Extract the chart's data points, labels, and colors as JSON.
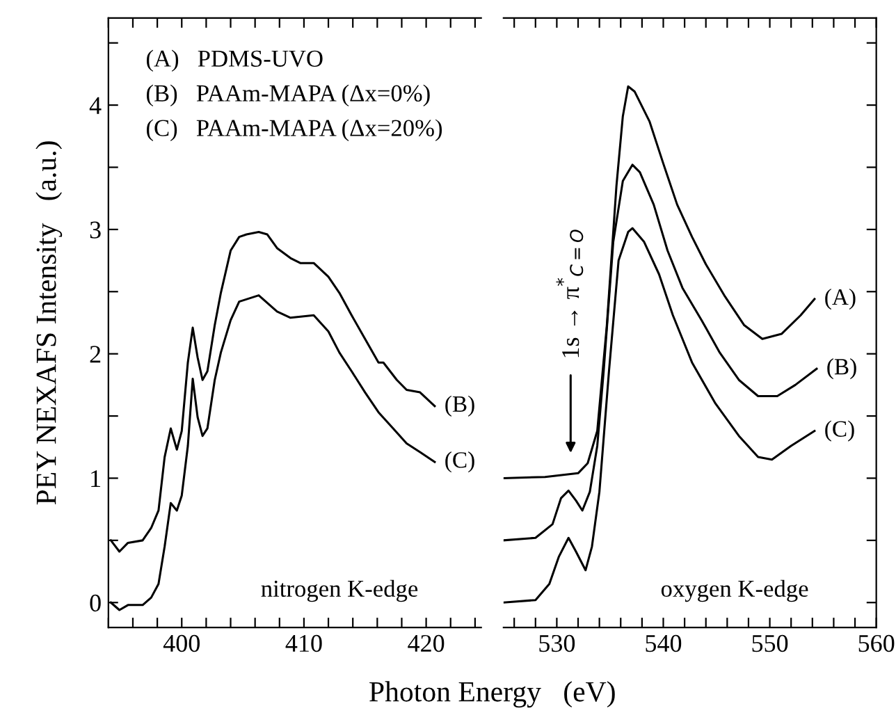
{
  "chart_data": [
    {
      "type": "line",
      "xlabel": "Photon Energy   (eV)",
      "ylabel": "PEY NEXAFS Intensity   (a.u.)",
      "xlim": [
        394,
        424.5
      ],
      "ylim": [
        -0.2,
        4.7
      ],
      "xticks": [
        {
          "value": 394,
          "label": null
        },
        {
          "value": 396,
          "label": null
        },
        {
          "value": 398,
          "label": null
        },
        400,
        {
          "value": 402,
          "label": null
        },
        {
          "value": 404,
          "label": null
        },
        {
          "value": 406,
          "label": null
        },
        {
          "value": 408,
          "label": null
        },
        410,
        {
          "value": 412,
          "label": null
        },
        {
          "value": 414,
          "label": null
        },
        {
          "value": 416,
          "label": null
        },
        {
          "value": 418,
          "label": null
        },
        420,
        {
          "value": 422,
          "label": null
        },
        {
          "value": 424,
          "label": null
        }
      ],
      "yticks": [
        0,
        {
          "value": 0.5,
          "label": null
        },
        1,
        {
          "value": 1.5,
          "label": null
        },
        2,
        {
          "value": 2.5,
          "label": null
        },
        3,
        {
          "value": 3.5,
          "label": null
        },
        4,
        {
          "value": 4.5,
          "label": null
        }
      ],
      "legend": "right",
      "annotations": [
        "(A)   PDMS-UVO",
        "(B)   PAAm-MAPA (Δx=0%)",
        "(C)   PAAm-MAPA (Δx=20%)",
        "nitrogen K-edge"
      ],
      "series": [
        {
          "name": "(B)",
          "color": "#000000",
          "x": [
            394.2,
            394.9,
            395.6,
            396.8,
            397.5,
            398.1,
            398.6,
            399.1,
            399.6,
            400.0,
            400.5,
            400.9,
            401.3,
            401.7,
            402.1,
            402.7,
            403.2,
            404.0,
            404.7,
            405.3,
            406.3,
            407.0,
            407.8,
            408.9,
            409.7,
            410.8,
            412.0,
            412.9,
            413.9,
            415.0,
            416.1,
            416.5,
            417.6,
            418.4,
            419.5,
            420.7
          ],
          "values": [
            0.5,
            0.41,
            0.48,
            0.5,
            0.6,
            0.74,
            1.17,
            1.4,
            1.23,
            1.38,
            1.93,
            2.21,
            1.97,
            1.79,
            1.86,
            2.23,
            2.49,
            2.83,
            2.94,
            2.96,
            2.98,
            2.96,
            2.85,
            2.77,
            2.73,
            2.73,
            2.62,
            2.49,
            2.31,
            2.12,
            1.93,
            1.93,
            1.79,
            1.71,
            1.69,
            1.58
          ]
        },
        {
          "name": "(C)",
          "color": "#000000",
          "x": [
            394.2,
            394.9,
            395.6,
            396.8,
            397.5,
            398.1,
            398.6,
            399.1,
            399.6,
            400.0,
            400.5,
            400.9,
            401.3,
            401.7,
            402.1,
            402.7,
            403.2,
            404.0,
            404.7,
            406.3,
            407.8,
            408.9,
            410.8,
            412.0,
            412.9,
            413.9,
            415.0,
            416.1,
            417.3,
            418.4,
            419.5,
            420.7
          ],
          "values": [
            0.0,
            -0.06,
            -0.02,
            -0.02,
            0.04,
            0.15,
            0.45,
            0.8,
            0.74,
            0.86,
            1.26,
            1.8,
            1.49,
            1.34,
            1.4,
            1.79,
            2.01,
            2.27,
            2.42,
            2.47,
            2.34,
            2.29,
            2.31,
            2.18,
            2.01,
            1.86,
            1.69,
            1.53,
            1.4,
            1.28,
            1.21,
            1.13
          ]
        }
      ]
    },
    {
      "type": "line",
      "tick_labels": "x",
      "xlim": [
        525,
        560
      ],
      "ylim": [
        -0.2,
        4.7
      ],
      "xticks": [
        {
          "value": 526,
          "label": null
        },
        {
          "value": 528,
          "label": null
        },
        530,
        {
          "value": 532,
          "label": null
        },
        {
          "value": 534,
          "label": null
        },
        {
          "value": 536,
          "label": null
        },
        {
          "value": 538,
          "label": null
        },
        540,
        {
          "value": 542,
          "label": null
        },
        {
          "value": 544,
          "label": null
        },
        {
          "value": 546,
          "label": null
        },
        {
          "value": 548,
          "label": null
        },
        550,
        {
          "value": 552,
          "label": null
        },
        {
          "value": 554,
          "label": null
        },
        {
          "value": 556,
          "label": null
        },
        {
          "value": 558,
          "label": null
        },
        560
      ],
      "yticks": [
        0,
        {
          "value": 0.5,
          "label": null
        },
        1,
        {
          "value": 1.5,
          "label": null
        },
        2,
        {
          "value": 2.5,
          "label": null
        },
        3,
        {
          "value": 3.5,
          "label": null
        },
        4,
        {
          "value": 4.5,
          "label": null
        }
      ],
      "annotations": [
        "1s → π$^{*}$$_{C=O}$",
        "oxygen K-edge"
      ],
      "legend": "right",
      "series": [
        {
          "name": "(A)",
          "color": "#000000",
          "x": [
            525.0,
            528.9,
            532.0,
            532.9,
            533.8,
            534.7,
            535.6,
            536.2,
            536.7,
            537.3,
            538.7,
            540.0,
            541.3,
            542.7,
            544.0,
            545.8,
            547.6,
            549.3,
            551.1,
            552.9,
            554.2
          ],
          "values": [
            1.0,
            1.01,
            1.04,
            1.12,
            1.38,
            2.23,
            3.35,
            3.91,
            4.15,
            4.11,
            3.87,
            3.53,
            3.2,
            2.94,
            2.72,
            2.46,
            2.23,
            2.12,
            2.16,
            2.31,
            2.44
          ]
        },
        {
          "name": "(B)",
          "color": "#000000",
          "x": [
            525.0,
            528.0,
            529.6,
            530.4,
            531.1,
            531.8,
            532.4,
            533.1,
            533.8,
            534.4,
            535.3,
            536.2,
            537.1,
            537.8,
            539.1,
            540.4,
            541.8,
            543.6,
            545.3,
            547.1,
            548.9,
            550.7,
            552.4,
            554.4
          ],
          "values": [
            0.5,
            0.52,
            0.63,
            0.84,
            0.9,
            0.82,
            0.74,
            0.89,
            1.26,
            1.86,
            2.9,
            3.39,
            3.52,
            3.46,
            3.2,
            2.83,
            2.53,
            2.27,
            2.01,
            1.79,
            1.66,
            1.66,
            1.75,
            1.88
          ]
        },
        {
          "name": "(C)",
          "color": "#000000",
          "x": [
            525.0,
            528.0,
            529.3,
            530.2,
            531.1,
            531.8,
            532.7,
            533.3,
            534.0,
            534.9,
            535.8,
            536.7,
            537.1,
            538.2,
            539.6,
            540.9,
            542.7,
            544.9,
            547.1,
            548.9,
            550.2,
            552.0,
            554.2
          ],
          "values": [
            0.0,
            0.02,
            0.15,
            0.37,
            0.52,
            0.41,
            0.26,
            0.45,
            0.89,
            1.86,
            2.75,
            2.98,
            3.01,
            2.9,
            2.64,
            2.31,
            1.93,
            1.6,
            1.34,
            1.17,
            1.15,
            1.26,
            1.38
          ]
        }
      ]
    }
  ]
}
